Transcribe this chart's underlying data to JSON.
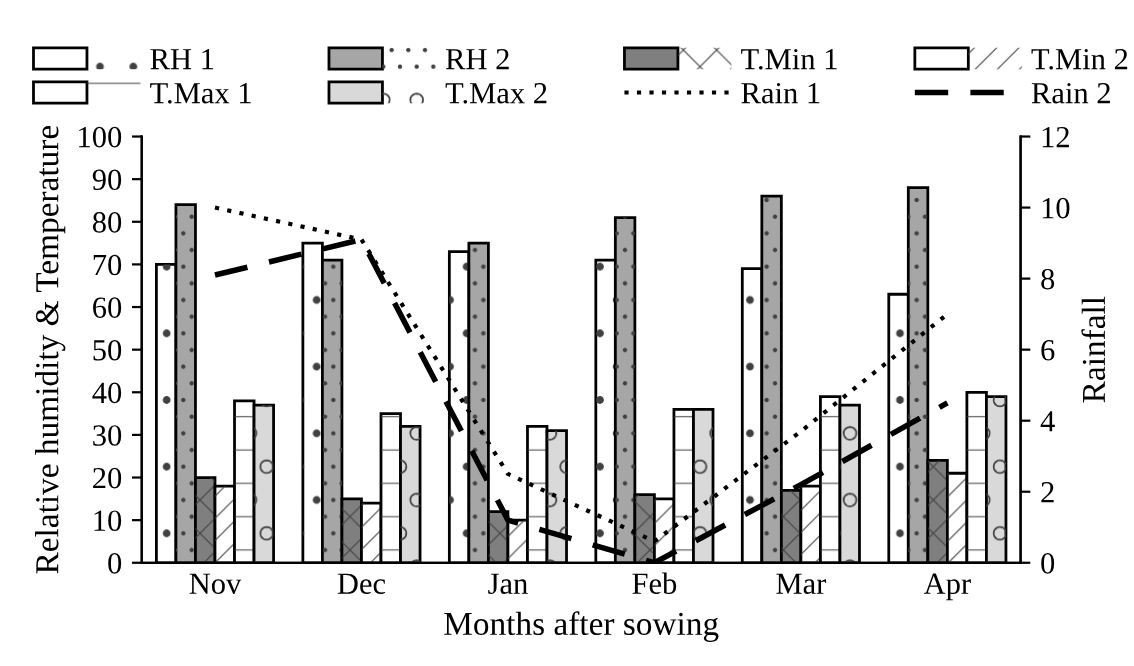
{
  "chart_data": {
    "type": "bar",
    "xlabel": "Months after sowing",
    "ylabel": "Relative humidity & Temperature",
    "y2label": "Rainfall",
    "categories": [
      "Nov",
      "Dec",
      "Jan",
      "Feb",
      "Mar",
      "Apr"
    ],
    "series": [
      {
        "name": "RH 1",
        "color": "#ffffff",
        "values": [
          70,
          75,
          73,
          71,
          69,
          63
        ]
      },
      {
        "name": "RH 2",
        "color": "#a6a6a6",
        "values": [
          84,
          71,
          75,
          81,
          86,
          88
        ]
      },
      {
        "name": "T.Min 1",
        "color": "#7f7f7f",
        "values": [
          20,
          15,
          12,
          16,
          17,
          24
        ]
      },
      {
        "name": "T.Min 2",
        "color": "#ffffff",
        "values": [
          18,
          14,
          10,
          15,
          18,
          21
        ]
      },
      {
        "name": "T.Max 1",
        "color": "#ffffff",
        "values": [
          38,
          35,
          32,
          36,
          39,
          40
        ]
      },
      {
        "name": "T.Max 2",
        "color": "#d9d9d9",
        "values": [
          37,
          32,
          31,
          36,
          37,
          39
        ]
      },
      {
        "name": "Rain 1",
        "type": "line",
        "axis": "y2",
        "line_style": "dotted",
        "color": "#000000",
        "values": [
          10,
          9.1,
          2.5,
          0.6,
          3.7,
          7
        ]
      },
      {
        "name": "Rain 2",
        "type": "line",
        "axis": "y2",
        "line_style": "dashed",
        "color": "#000000",
        "values": [
          8.1,
          9.1,
          1.2,
          0,
          2.2,
          4.5
        ]
      }
    ],
    "ylim": [
      0,
      100
    ],
    "yticks": [
      0,
      10,
      20,
      30,
      40,
      50,
      60,
      70,
      80,
      90,
      100
    ],
    "y2lim": [
      0,
      12
    ],
    "y2ticks": [
      0,
      2,
      4,
      6,
      8,
      10,
      12
    ],
    "grid": false,
    "legend": "top",
    "marker": "none"
  }
}
